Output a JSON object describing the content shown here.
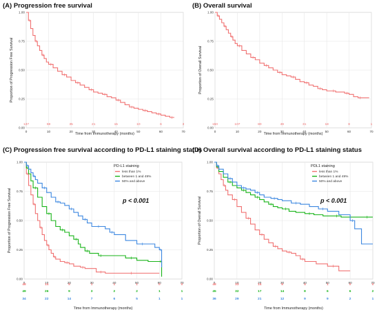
{
  "colors": {
    "red": "#f07070",
    "green": "#16b316",
    "blue": "#3a86e0",
    "grid": "#e6e6e6"
  },
  "chart_data": [
    {
      "type": "line",
      "title": "(A) Progression free survival",
      "xlabel": "Time from Immunotherapy (months)",
      "ylabel": "Proportion of Progression Free Survival",
      "xlim": [
        0,
        70
      ],
      "ylim": [
        0,
        1
      ],
      "x_ticks": [
        "0",
        "10",
        "20",
        "30",
        "40",
        "50",
        "60",
        "70"
      ],
      "y_ticks": [
        "0.00",
        "0.25",
        "0.50",
        "0.75",
        "1.00"
      ],
      "risk_times": [
        0,
        10,
        20,
        30,
        40,
        50,
        60,
        70
      ],
      "series": [
        {
          "color_key": "red",
          "x": [
            0,
            1,
            2,
            3,
            4,
            5,
            6,
            7,
            8,
            9,
            10,
            12,
            14,
            16,
            18,
            20,
            22,
            24,
            26,
            28,
            30,
            32,
            34,
            36,
            38,
            40,
            42,
            44,
            46,
            48,
            50,
            52,
            54,
            56,
            58,
            60,
            62,
            64,
            66
          ],
          "y": [
            1.0,
            0.93,
            0.86,
            0.8,
            0.75,
            0.71,
            0.67,
            0.63,
            0.6,
            0.57,
            0.55,
            0.52,
            0.49,
            0.46,
            0.44,
            0.41,
            0.39,
            0.37,
            0.35,
            0.33,
            0.31,
            0.3,
            0.29,
            0.27,
            0.26,
            0.24,
            0.22,
            0.2,
            0.18,
            0.17,
            0.16,
            0.15,
            0.14,
            0.13,
            0.12,
            0.11,
            0.1,
            0.09,
            0.09
          ],
          "risk": [
            "137",
            "59",
            "35",
            "21",
            "15",
            "10",
            "6",
            "3"
          ]
        }
      ]
    },
    {
      "type": "line",
      "title": "(B) Overall survival",
      "xlabel": "Time from Immunotherapy (months)",
      "ylabel": "Proportion of Overall Survival",
      "xlim": [
        0,
        70
      ],
      "ylim": [
        0,
        1
      ],
      "x_ticks": [
        "0",
        "10",
        "20",
        "30",
        "40",
        "50",
        "60",
        "70"
      ],
      "y_ticks": [
        "0.00",
        "0.25",
        "0.50",
        "0.75",
        "1.00"
      ],
      "risk_times": [
        0,
        10,
        20,
        30,
        40,
        50,
        60,
        70
      ],
      "series": [
        {
          "color_key": "red",
          "x": [
            0,
            1,
            2,
            3,
            4,
            5,
            6,
            7,
            8,
            9,
            10,
            12,
            14,
            16,
            18,
            20,
            22,
            24,
            26,
            28,
            30,
            32,
            34,
            36,
            38,
            40,
            42,
            44,
            46,
            48,
            50,
            52,
            54,
            56,
            58,
            60,
            62,
            64,
            66,
            68,
            69
          ],
          "y": [
            1.0,
            0.97,
            0.94,
            0.91,
            0.88,
            0.85,
            0.82,
            0.79,
            0.76,
            0.73,
            0.71,
            0.67,
            0.64,
            0.61,
            0.59,
            0.56,
            0.54,
            0.52,
            0.5,
            0.48,
            0.46,
            0.45,
            0.44,
            0.42,
            0.4,
            0.39,
            0.37,
            0.36,
            0.34,
            0.33,
            0.32,
            0.32,
            0.31,
            0.31,
            0.3,
            0.29,
            0.27,
            0.26,
            0.26,
            0.26,
            0.26
          ],
          "risk": [
            "150",
            "107",
            "80",
            "49",
            "31",
            "18",
            "8",
            "1"
          ]
        }
      ]
    },
    {
      "type": "line",
      "title": "(C) Progression free survival according to PD-L1 staining status",
      "xlabel": "Time from Immunotherapy  (months)",
      "ylabel": "Proportion of Progression Free Survival",
      "xlim": [
        0,
        70
      ],
      "ylim": [
        0,
        1
      ],
      "x_ticks": [
        "0",
        "10",
        "20",
        "30",
        "40",
        "50",
        "60",
        "70"
      ],
      "y_ticks": [
        "0.00",
        "0.25",
        "0.50",
        "0.75",
        "1.00"
      ],
      "legend_title": "PD-L1 staining",
      "annotation": "p < 0.001",
      "risk_times": [
        0,
        10,
        20,
        30,
        40,
        50,
        60,
        70
      ],
      "series": [
        {
          "name": "less than 1%",
          "color_key": "red",
          "x": [
            0,
            1,
            2,
            3,
            4,
            5,
            6,
            7,
            8,
            9,
            10,
            11,
            12,
            13,
            14,
            16,
            18,
            20,
            22,
            25,
            27,
            30,
            32,
            36,
            40,
            45,
            50,
            55,
            60
          ],
          "y": [
            1.0,
            0.9,
            0.8,
            0.72,
            0.64,
            0.56,
            0.5,
            0.44,
            0.38,
            0.33,
            0.29,
            0.25,
            0.22,
            0.19,
            0.17,
            0.15,
            0.14,
            0.13,
            0.11,
            0.1,
            0.09,
            0.09,
            0.06,
            0.05,
            0.05,
            0.05,
            0.05,
            0.05,
            0.05
          ],
          "risk": [
            "48",
            "14",
            "5",
            "1",
            "1",
            "1",
            "0",
            "0"
          ]
        },
        {
          "name": "between 1 and 49%",
          "color_key": "green",
          "x": [
            0,
            1,
            2,
            3,
            4,
            6,
            8,
            10,
            12,
            14,
            16,
            18,
            20,
            22,
            24,
            25,
            27,
            29,
            31,
            33,
            35,
            40,
            45,
            50,
            55,
            60,
            61
          ],
          "y": [
            1.0,
            0.95,
            0.9,
            0.84,
            0.78,
            0.7,
            0.62,
            0.56,
            0.5,
            0.45,
            0.42,
            0.4,
            0.37,
            0.34,
            0.3,
            0.27,
            0.24,
            0.22,
            0.22,
            0.2,
            0.2,
            0.2,
            0.18,
            0.16,
            0.15,
            0.15,
            0.02
          ],
          "risk": [
            "49",
            "26",
            "9",
            "3",
            "2",
            "2",
            "1",
            "1"
          ]
        },
        {
          "name": "50% and above",
          "color_key": "blue",
          "x": [
            0,
            1,
            2,
            3,
            4,
            5,
            6,
            8,
            10,
            12,
            14,
            16,
            18,
            20,
            22,
            24,
            26,
            28,
            30,
            32,
            34,
            36,
            38,
            40,
            45,
            50,
            55,
            58,
            60,
            61
          ],
          "y": [
            1.0,
            0.97,
            0.94,
            0.91,
            0.88,
            0.85,
            0.82,
            0.78,
            0.74,
            0.7,
            0.66,
            0.65,
            0.63,
            0.6,
            0.57,
            0.54,
            0.51,
            0.48,
            0.45,
            0.45,
            0.45,
            0.43,
            0.4,
            0.38,
            0.33,
            0.3,
            0.3,
            0.27,
            0.25,
            0.1
          ],
          "risk": [
            "34",
            "22",
            "14",
            "7",
            "6",
            "5",
            "1",
            "1"
          ]
        }
      ]
    },
    {
      "type": "line",
      "title": "(D) Overall survival according to PD-L1 staining status",
      "xlabel": "Time from Immunotherapy (months)",
      "ylabel": "Proportion of Overall Survival",
      "xlim": [
        0,
        70
      ],
      "ylim": [
        0,
        1
      ],
      "x_ticks": [
        "0",
        "10",
        "20",
        "30",
        "40",
        "50",
        "60",
        "70"
      ],
      "y_ticks": [
        "0.00",
        "0.25",
        "0.50",
        "0.75",
        "1.00"
      ],
      "legend_title": "PDL1 staining",
      "annotation": "p < 0.001",
      "risk_times": [
        0,
        10,
        20,
        30,
        40,
        50,
        60,
        70
      ],
      "series": [
        {
          "name": "less than 1%",
          "color_key": "red",
          "x": [
            0,
            1,
            2,
            3,
            4,
            5,
            6,
            8,
            10,
            12,
            14,
            16,
            18,
            20,
            22,
            24,
            26,
            28,
            30,
            32,
            34,
            36,
            38,
            40,
            45,
            50,
            55,
            60
          ],
          "y": [
            1.0,
            0.95,
            0.9,
            0.85,
            0.8,
            0.76,
            0.72,
            0.68,
            0.62,
            0.57,
            0.52,
            0.47,
            0.42,
            0.38,
            0.34,
            0.31,
            0.28,
            0.26,
            0.24,
            0.23,
            0.22,
            0.2,
            0.17,
            0.15,
            0.13,
            0.11,
            0.07,
            0.07
          ],
          "risk": [
            "48",
            "33",
            "14",
            "8",
            "4",
            "1",
            "0",
            "0"
          ]
        },
        {
          "name": "between 1 and 49%",
          "color_key": "green",
          "x": [
            0,
            1,
            2,
            4,
            6,
            8,
            10,
            12,
            14,
            16,
            18,
            20,
            22,
            24,
            26,
            28,
            30,
            33,
            36,
            40,
            44,
            48,
            52,
            56,
            60,
            65,
            70
          ],
          "y": [
            1.0,
            0.96,
            0.92,
            0.87,
            0.83,
            0.8,
            0.78,
            0.76,
            0.74,
            0.72,
            0.7,
            0.68,
            0.66,
            0.64,
            0.62,
            0.61,
            0.6,
            0.58,
            0.57,
            0.56,
            0.55,
            0.54,
            0.54,
            0.53,
            0.53,
            0.53,
            0.53
          ],
          "risk": [
            "45",
            "32",
            "17",
            "14",
            "8",
            "6",
            "6",
            "2"
          ]
        },
        {
          "name": "50% and above",
          "color_key": "blue",
          "x": [
            0,
            1,
            2,
            4,
            6,
            8,
            10,
            12,
            14,
            16,
            18,
            20,
            22,
            25,
            28,
            30,
            34,
            38,
            42,
            46,
            50,
            55,
            60,
            62,
            65,
            70
          ],
          "y": [
            1.0,
            0.97,
            0.94,
            0.9,
            0.86,
            0.83,
            0.8,
            0.78,
            0.77,
            0.76,
            0.74,
            0.72,
            0.7,
            0.69,
            0.68,
            0.67,
            0.65,
            0.64,
            0.62,
            0.6,
            0.58,
            0.55,
            0.5,
            0.43,
            0.3,
            0.3
          ],
          "risk": [
            "36",
            "29",
            "21",
            "12",
            "9",
            "9",
            "2",
            "1"
          ]
        }
      ]
    }
  ]
}
